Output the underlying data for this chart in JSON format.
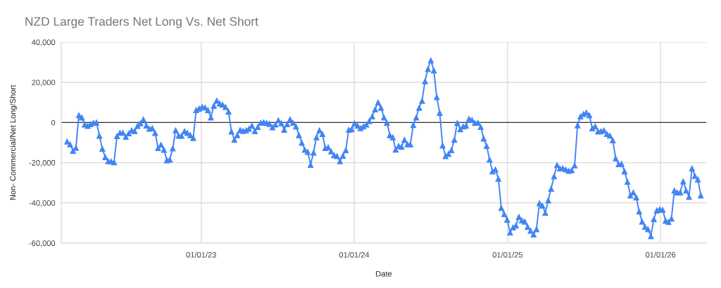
{
  "chart_data": {
    "type": "line",
    "title": "NZD Large Traders Net Long Vs. Net Short",
    "xlabel": "Date",
    "ylabel": "Non- Commercial/Net Long/Short",
    "x": [
      "2022-02-15",
      "2022-02-22",
      "2022-03-01",
      "2022-03-08",
      "2022-03-15",
      "2022-03-22",
      "2022-03-29",
      "2022-04-05",
      "2022-04-12",
      "2022-04-19",
      "2022-04-26",
      "2022-05-03",
      "2022-05-10",
      "2022-05-17",
      "2022-05-24",
      "2022-05-31",
      "2022-06-07",
      "2022-06-14",
      "2022-06-21",
      "2022-06-28",
      "2022-07-05",
      "2022-07-12",
      "2022-07-19",
      "2022-07-26",
      "2022-08-02",
      "2022-08-09",
      "2022-08-16",
      "2022-08-23",
      "2022-08-30",
      "2022-09-06",
      "2022-09-13",
      "2022-09-20",
      "2022-09-27",
      "2022-10-04",
      "2022-10-11",
      "2022-10-18",
      "2022-10-25",
      "2022-11-01",
      "2022-11-08",
      "2022-11-15",
      "2022-11-22",
      "2022-11-29",
      "2022-12-06",
      "2022-12-13",
      "2022-12-20",
      "2022-12-27",
      "2023-01-03",
      "2023-01-10",
      "2023-01-17",
      "2023-01-24",
      "2023-01-31",
      "2023-02-07",
      "2023-02-14",
      "2023-02-21",
      "2023-02-28",
      "2023-03-07",
      "2023-03-14",
      "2023-03-21",
      "2023-03-28",
      "2023-04-04",
      "2023-04-11",
      "2023-04-18",
      "2023-04-25",
      "2023-05-02",
      "2023-05-09",
      "2023-05-16",
      "2023-05-23",
      "2023-05-30",
      "2023-06-06",
      "2023-06-13",
      "2023-06-20",
      "2023-06-27",
      "2023-07-04",
      "2023-07-11",
      "2023-07-18",
      "2023-07-25",
      "2023-08-01",
      "2023-08-08",
      "2023-08-15",
      "2023-08-22",
      "2023-08-29",
      "2023-09-05",
      "2023-09-12",
      "2023-09-19",
      "2023-09-26",
      "2023-10-03",
      "2023-10-10",
      "2023-10-17",
      "2023-10-24",
      "2023-10-31",
      "2023-11-07",
      "2023-11-14",
      "2023-11-21",
      "2023-11-28",
      "2023-12-05",
      "2023-12-12",
      "2023-12-19",
      "2023-12-26",
      "2024-01-02",
      "2024-01-09",
      "2024-01-16",
      "2024-01-23",
      "2024-01-30",
      "2024-02-06",
      "2024-02-13",
      "2024-02-20",
      "2024-02-27",
      "2024-03-05",
      "2024-03-12",
      "2024-03-19",
      "2024-03-26",
      "2024-04-02",
      "2024-04-09",
      "2024-04-16",
      "2024-04-23",
      "2024-04-30",
      "2024-05-07",
      "2024-05-14",
      "2024-05-21",
      "2024-05-28",
      "2024-06-04",
      "2024-06-11",
      "2024-06-18",
      "2024-06-25",
      "2024-07-02",
      "2024-07-09",
      "2024-07-16",
      "2024-07-23",
      "2024-07-30",
      "2024-08-06",
      "2024-08-13",
      "2024-08-20",
      "2024-08-27",
      "2024-09-03",
      "2024-09-10",
      "2024-09-17",
      "2024-09-24",
      "2024-10-01",
      "2024-10-08",
      "2024-10-15",
      "2024-10-22",
      "2024-10-29",
      "2024-11-05",
      "2024-11-12",
      "2024-11-19",
      "2024-11-26",
      "2024-12-03",
      "2024-12-10",
      "2024-12-17",
      "2024-12-24",
      "2024-12-31",
      "2025-01-07",
      "2025-01-14",
      "2025-01-21",
      "2025-01-28",
      "2025-02-04",
      "2025-02-11",
      "2025-02-18",
      "2025-02-25",
      "2025-03-04",
      "2025-03-11",
      "2025-03-18",
      "2025-03-25",
      "2025-04-01",
      "2025-04-08",
      "2025-04-15",
      "2025-04-22",
      "2025-04-29",
      "2025-05-06",
      "2025-05-13",
      "2025-05-20",
      "2025-05-27",
      "2025-06-03",
      "2025-06-10",
      "2025-06-17",
      "2025-06-24",
      "2025-07-01",
      "2025-07-08",
      "2025-07-15",
      "2025-07-22",
      "2025-07-29",
      "2025-08-05",
      "2025-08-12",
      "2025-08-19",
      "2025-08-26",
      "2025-09-02",
      "2025-09-09",
      "2025-09-16",
      "2025-09-23",
      "2025-09-30",
      "2025-10-07",
      "2025-10-14",
      "2025-10-21",
      "2025-10-28",
      "2025-11-04",
      "2025-11-11",
      "2025-11-18",
      "2025-11-25",
      "2025-12-02",
      "2025-12-09",
      "2025-12-16",
      "2025-12-23",
      "2025-12-30",
      "2026-01-06",
      "2026-01-13",
      "2026-01-20",
      "2026-01-27",
      "2026-02-03",
      "2026-02-10",
      "2026-02-17",
      "2026-02-24",
      "2026-03-03",
      "2026-03-10",
      "2026-03-17",
      "2026-03-24",
      "2026-03-31",
      "2026-04-07"
    ],
    "series": [
      {
        "color": "#4285f4",
        "values": [
          -9400,
          -10800,
          -14000,
          -12500,
          3700,
          2600,
          -900,
          -1600,
          -700,
          0,
          100,
          -6500,
          -13000,
          -17200,
          -19200,
          -19300,
          -19700,
          -6700,
          -5000,
          -5000,
          -7000,
          -5300,
          -3800,
          -4200,
          -1600,
          -300,
          1600,
          -1400,
          -3000,
          -2700,
          -5100,
          -12600,
          -11000,
          -13500,
          -18700,
          -18400,
          -12800,
          -3800,
          -6500,
          -6500,
          -4200,
          -5100,
          -6200,
          -7600,
          6300,
          7000,
          7800,
          7600,
          6300,
          2600,
          8400,
          11000,
          9500,
          9000,
          7800,
          5500,
          -4400,
          -8500,
          -6200,
          -3600,
          -4100,
          -3800,
          -3000,
          -1500,
          -4200,
          -2100,
          0,
          200,
          -100,
          -600,
          -2300,
          -900,
          1200,
          -300,
          -3500,
          -700,
          1600,
          0,
          -1900,
          -6200,
          -10000,
          -13500,
          -14500,
          -21000,
          -14900,
          -7300,
          -3800,
          -5600,
          -12600,
          -12300,
          -14300,
          -16200,
          -16600,
          -19200,
          -16500,
          -13700,
          -3500,
          -3300,
          -300,
          -1500,
          -2700,
          -1900,
          -900,
          800,
          3100,
          6600,
          10100,
          7400,
          2600,
          0,
          -6200,
          -7300,
          -13400,
          -11600,
          -12000,
          -8500,
          -10800,
          -10800,
          -1200,
          2600,
          7400,
          10900,
          20600,
          26700,
          31000,
          26000,
          12700,
          4900,
          -11400,
          -16600,
          -15500,
          -13700,
          -8500,
          -100,
          -3300,
          -1900,
          -1500,
          2000,
          1400,
          -100,
          0,
          -2100,
          -7900,
          -11600,
          -18400,
          -24200,
          -23300,
          -27900,
          -42400,
          -45500,
          -48300,
          -54700,
          -52100,
          -51200,
          -46900,
          -48600,
          -49200,
          -51900,
          -53800,
          -55600,
          -53000,
          -40100,
          -41300,
          -44900,
          -38700,
          -32900,
          -26700,
          -21100,
          -22800,
          -22700,
          -23300,
          -24000,
          -23600,
          -21300,
          -1300,
          3100,
          4300,
          5000,
          3700,
          -2800,
          -1800,
          -4400,
          -4200,
          -3800,
          -5600,
          -6400,
          -8800,
          -17800,
          -20700,
          -20500,
          -24200,
          -29400,
          -36200,
          -34700,
          -37200,
          -44200,
          -49200,
          -51900,
          -53000,
          -56500,
          -48000,
          -43700,
          -43100,
          -43400,
          -48800,
          -49400,
          -47800,
          -33800,
          -34700,
          -34700,
          -29200,
          -33800,
          -36900,
          -22800,
          -26500,
          -28300,
          -36200
        ]
      }
    ],
    "xlim": [
      "2022-02-01",
      "2026-04-20"
    ],
    "xticks": [
      {
        "value": "2023-01-01",
        "label": "01/01/23"
      },
      {
        "value": "2024-01-01",
        "label": "01/01/24"
      },
      {
        "value": "2025-01-01",
        "label": "01/01/25"
      },
      {
        "value": "2026-01-01",
        "label": "01/01/26"
      }
    ],
    "ylim": [
      -60000,
      40000
    ],
    "yticks": [
      {
        "value": -60000,
        "label": "-60,000"
      },
      {
        "value": -40000,
        "label": "-40,000"
      },
      {
        "value": -20000,
        "label": "-20,000"
      },
      0,
      {
        "value": 20000,
        "label": "20,000"
      },
      {
        "value": 40000,
        "label": "40,000"
      }
    ],
    "ref_lines": [
      {
        "axis": "y",
        "value": 0,
        "color": "#333333"
      }
    ],
    "grid": true,
    "marker": "triangle",
    "line_style": "solid"
  }
}
